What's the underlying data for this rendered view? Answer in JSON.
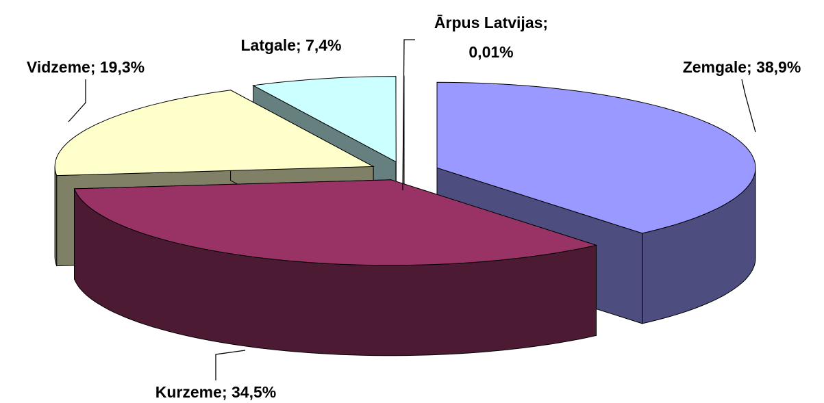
{
  "chart_data": {
    "type": "pie",
    "three_d": true,
    "categories": [
      "Zemgale",
      "Kurzeme",
      "Vidzeme",
      "Latgale",
      "Ārpus Latvijas"
    ],
    "values": [
      38.9,
      34.5,
      19.3,
      7.4,
      0.01
    ],
    "value_labels": [
      "38,9%",
      "34,5%",
      "19,3%",
      "7,4%",
      "0,01%"
    ],
    "colors": [
      "#9999ff",
      "#993366",
      "#ffffcc",
      "#ccffff",
      "#660066"
    ]
  }
}
